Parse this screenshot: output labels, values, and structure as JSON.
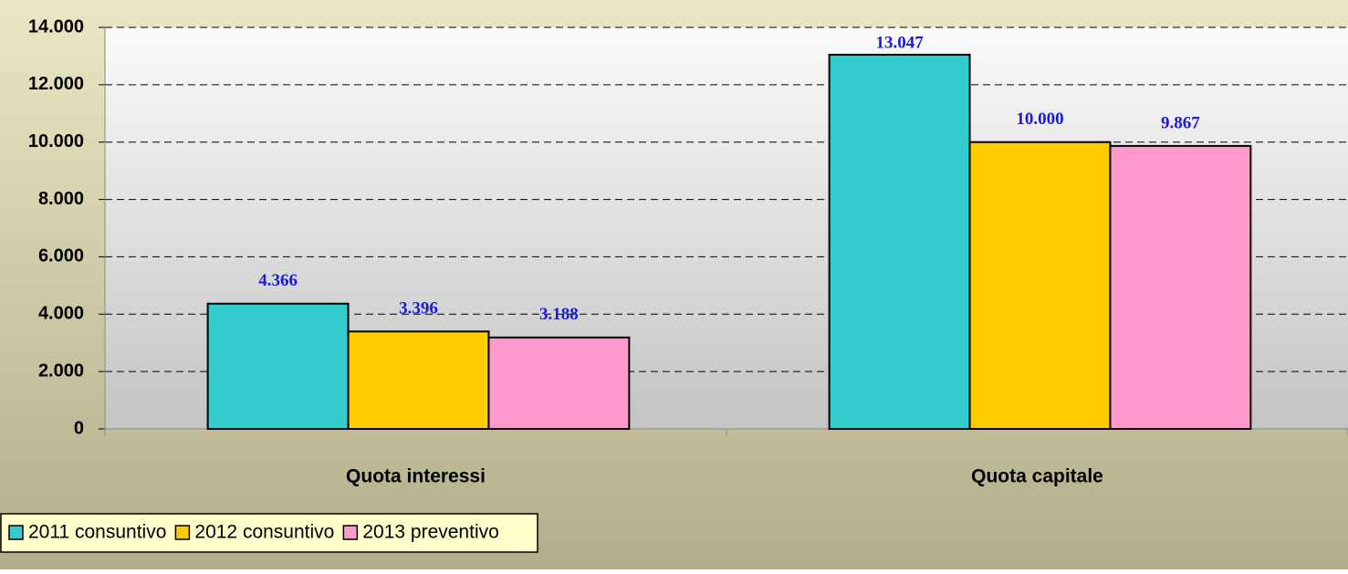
{
  "chart_data": {
    "type": "bar",
    "categories": [
      "Quota interessi",
      "Quota capitale"
    ],
    "series": [
      {
        "name": "2011 consuntivo",
        "color": "#33cccc",
        "values": [
          4366,
          13047
        ],
        "value_labels": [
          "4.366",
          "13.047"
        ]
      },
      {
        "name": "2012 consuntivo",
        "color": "#ffcc00",
        "values": [
          3396,
          10000
        ],
        "value_labels": [
          "3.396",
          "10.000"
        ]
      },
      {
        "name": "2013 preventivo",
        "color": "#ff99cc",
        "values": [
          3188,
          9867
        ],
        "value_labels": [
          "3.188",
          "9.867"
        ]
      }
    ],
    "ylim": [
      0,
      14000
    ],
    "yticks": [
      0,
      {
        "value": 2000,
        "label": "2.000"
      },
      {
        "value": 4000,
        "label": "4.000"
      },
      {
        "value": 6000,
        "label": "6.000"
      },
      {
        "value": 8000,
        "label": "8.000"
      },
      {
        "value": 10000,
        "label": "10.000"
      },
      {
        "value": 12000,
        "label": "12.000"
      },
      {
        "value": 14000,
        "label": "14.000"
      }
    ],
    "grid": true,
    "legend": "bottom-left"
  }
}
